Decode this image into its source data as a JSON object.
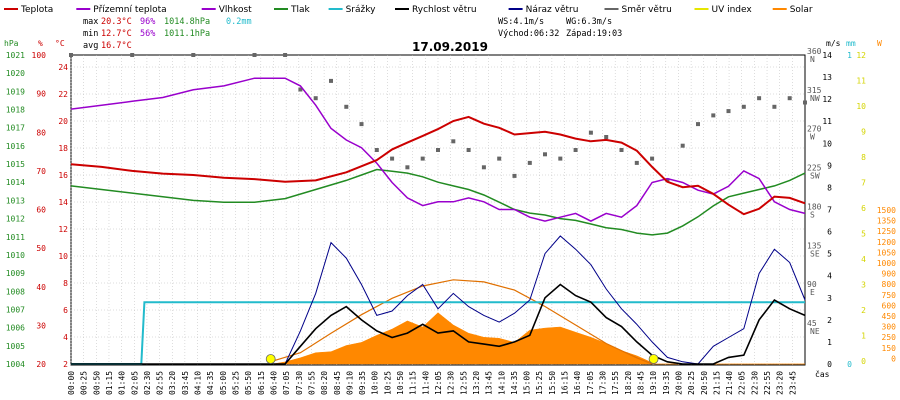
{
  "chart_data": {
    "type": "line",
    "title": "17.09.2019",
    "legend": [
      {
        "label": "Teplota",
        "color": "#cc0000"
      },
      {
        "label": "Přízemní teplota",
        "color": "#9900cc"
      },
      {
        "label": "Vlhkost",
        "color": "#9900cc"
      },
      {
        "label": "Tlak",
        "color": "#228b22"
      },
      {
        "label": "Srážky",
        "color": "#22bbcc"
      },
      {
        "label": "Rychlost větru",
        "color": "#000000"
      },
      {
        "label": "Náraz větru",
        "color": "#000088"
      },
      {
        "label": "Směr větru",
        "color": "#666666"
      },
      {
        "label": "UV index",
        "color": "#e6e600"
      },
      {
        "label": "Solar",
        "color": "#ff8800"
      }
    ],
    "stats": {
      "max_label": "max",
      "max_temp": "20.3°C",
      "max_hum": "96%",
      "max_press": "1014.8hPa",
      "rain": "0.2mm",
      "min_label": "min",
      "min_temp": "12.7°C",
      "min_hum": "56%",
      "min_press": "1011.1hPa",
      "avg_label": "avg",
      "avg_temp": "16.7°C",
      "ws": "WS:4.1m/s",
      "wg": "WG:6.3m/s",
      "sunrise": "Východ:06:32",
      "sunset": "Západ:19:03"
    },
    "left_axes": {
      "hpa_unit": "hPa",
      "hpa_ticks": [
        "1021",
        "1020",
        "1019",
        "1018",
        "1017",
        "1016",
        "1015",
        "1014",
        "1013",
        "1012",
        "1011",
        "1010",
        "1009",
        "1008",
        "1007",
        "1006",
        "1005",
        "1004"
      ],
      "pct_unit": "%",
      "pct_ticks": [
        "100",
        "90",
        "80",
        "70",
        "60",
        "50",
        "40",
        "30",
        "20"
      ],
      "c_unit": "°C",
      "c_ticks": [
        "24",
        "22",
        "20",
        "18",
        "16",
        "14",
        "12",
        "10",
        "8",
        "6",
        "4",
        "2"
      ]
    },
    "right_axes": {
      "ms_unit": "m/s",
      "ms_ticks": [
        "14",
        "13",
        "12",
        "11",
        "10",
        "9",
        "8",
        "7",
        "6",
        "5",
        "4",
        "3",
        "2",
        "1",
        "0"
      ],
      "mm_unit": "mm",
      "mm_ticks": [
        "1",
        "0"
      ],
      "w_unit": "W",
      "w_ticks": [
        "1500",
        "1350",
        "1250",
        "1200",
        "1050",
        "1000",
        "900",
        "800",
        "750",
        "600",
        "450",
        "300",
        "250",
        "150",
        "0"
      ],
      "dir_ticks": [
        {
          "deg": "360",
          "name": "N"
        },
        {
          "deg": "315",
          "name": "NW"
        },
        {
          "deg": "270",
          "name": "W"
        },
        {
          "deg": "225",
          "name": "SW"
        },
        {
          "deg": "180",
          "name": "S"
        },
        {
          "deg": "135",
          "name": "SE"
        },
        {
          "deg": "90",
          "name": "E"
        },
        {
          "deg": "45",
          "name": "NE"
        }
      ],
      "uv_ticks": [
        "12",
        "11",
        "10",
        "9",
        "8",
        "7",
        "6",
        "5",
        "4",
        "3",
        "2",
        "1",
        "0"
      ]
    },
    "x_ticks": [
      "00:00",
      "00:25",
      "00:50",
      "01:15",
      "01:40",
      "02:05",
      "02:30",
      "02:55",
      "03:20",
      "03:45",
      "04:10",
      "04:35",
      "05:00",
      "05:25",
      "05:50",
      "06:15",
      "06:40",
      "07:05",
      "07:30",
      "07:55",
      "08:20",
      "08:45",
      "09:10",
      "09:35",
      "10:00",
      "10:25",
      "10:50",
      "11:15",
      "11:40",
      "12:05",
      "12:30",
      "12:55",
      "13:20",
      "13:45",
      "14:10",
      "14:35",
      "15:00",
      "15:25",
      "15:50",
      "16:15",
      "16:40",
      "17:05",
      "17:30",
      "17:55",
      "18:20",
      "18:45",
      "19:10",
      "19:35",
      "20:00",
      "20:25",
      "20:50",
      "21:15",
      "21:40",
      "22:05",
      "22:30",
      "22:55",
      "23:20",
      "23:45"
    ],
    "x_unit": "čas",
    "x_range_hours": [
      0,
      24
    ],
    "series": [
      {
        "name": "Teplota",
        "unit": "°C",
        "color": "#cc0000",
        "x": [
          0,
          1,
          2,
          3,
          4,
          5,
          6,
          7,
          8,
          9,
          10,
          10.5,
          11,
          11.5,
          12,
          12.5,
          13,
          13.5,
          14,
          14.5,
          15,
          15.5,
          16,
          16.5,
          17,
          17.5,
          18,
          18.5,
          19,
          19.5,
          20,
          20.5,
          21,
          21.5,
          22,
          22.5,
          23,
          23.5,
          24
        ],
        "y": [
          16.8,
          16.6,
          16.3,
          16.1,
          16.0,
          15.8,
          15.7,
          15.5,
          15.6,
          16.2,
          17.1,
          17.9,
          18.4,
          18.9,
          19.4,
          20.0,
          20.3,
          19.8,
          19.5,
          19.0,
          19.1,
          19.2,
          19.0,
          18.7,
          18.5,
          18.6,
          18.4,
          17.8,
          16.6,
          15.5,
          15.1,
          15.2,
          14.6,
          13.8,
          13.1,
          13.5,
          14.4,
          14.3,
          13.9
        ]
      },
      {
        "name": "Vlhkost",
        "unit": "%",
        "color": "#9900cc",
        "x": [
          0,
          1,
          2,
          3,
          4,
          5,
          6,
          6.5,
          7,
          7.5,
          8,
          8.5,
          9,
          9.5,
          10,
          10.5,
          11,
          11.5,
          12,
          12.5,
          13,
          13.5,
          14,
          14.5,
          15,
          15.5,
          16,
          16.5,
          17,
          17.5,
          18,
          18.5,
          19,
          19.5,
          20,
          20.5,
          21,
          21.5,
          22,
          22.5,
          23,
          23.5,
          24
        ],
        "y": [
          86,
          87,
          88,
          89,
          91,
          92,
          94,
          94,
          94,
          92,
          87,
          81,
          78,
          76,
          72,
          67,
          63,
          61,
          62,
          62,
          63,
          62,
          60,
          60,
          58,
          57,
          58,
          59,
          57,
          59,
          58,
          61,
          67,
          68,
          67,
          65,
          64,
          66,
          70,
          68,
          62,
          60,
          59
        ]
      },
      {
        "name": "Tlak",
        "unit": "hPa",
        "color": "#228b22",
        "x": [
          0,
          1,
          2,
          3,
          4,
          5,
          6,
          7,
          8,
          9,
          9.5,
          10,
          10.5,
          11,
          11.5,
          12,
          12.5,
          13,
          13.5,
          14,
          14.5,
          15,
          15.5,
          16,
          16.5,
          17,
          17.5,
          18,
          18.5,
          19,
          19.5,
          20,
          20.5,
          21,
          21.5,
          22,
          22.5,
          23,
          23.5,
          24
        ],
        "y": [
          1013.8,
          1013.6,
          1013.4,
          1013.2,
          1013.0,
          1012.9,
          1012.9,
          1013.1,
          1013.6,
          1014.1,
          1014.4,
          1014.7,
          1014.6,
          1014.5,
          1014.3,
          1014.0,
          1013.8,
          1013.6,
          1013.3,
          1012.9,
          1012.5,
          1012.3,
          1012.2,
          1012.0,
          1011.9,
          1011.7,
          1011.5,
          1011.4,
          1011.2,
          1011.1,
          1011.2,
          1011.6,
          1012.1,
          1012.7,
          1013.2,
          1013.4,
          1013.6,
          1013.8,
          1014.1,
          1014.5
        ]
      },
      {
        "name": "Srážky",
        "unit": "mm",
        "color": "#22bbcc",
        "x": [
          0,
          2.3,
          2.4,
          24
        ],
        "y": [
          0,
          0,
          0.2,
          0.2
        ]
      },
      {
        "name": "Rychlost větru",
        "unit": "m/s",
        "color": "#000000",
        "x": [
          0,
          7.0,
          7.5,
          8.0,
          8.5,
          9.0,
          9.5,
          10.0,
          10.5,
          11.0,
          11.5,
          12.0,
          12.5,
          13.0,
          13.5,
          14.0,
          14.5,
          15.0,
          15.5,
          16.0,
          16.5,
          17.0,
          17.5,
          18.0,
          18.5,
          19.0,
          19.5,
          20.0,
          20.5,
          21.0,
          21.5,
          22.0,
          22.5,
          23.0,
          23.5,
          24
        ],
        "y": [
          0,
          0,
          0.8,
          1.6,
          2.2,
          2.6,
          2.0,
          1.5,
          1.2,
          1.4,
          1.8,
          1.4,
          1.5,
          1.0,
          0.9,
          0.8,
          1.0,
          1.3,
          3.0,
          3.6,
          3.1,
          2.8,
          2.1,
          1.7,
          1.0,
          0.4,
          0.1,
          0,
          0,
          0,
          0.3,
          0.4,
          2.0,
          2.9,
          2.5,
          2.2
        ]
      },
      {
        "name": "Náraz větru",
        "unit": "m/s",
        "color": "#000088",
        "x": [
          0,
          7.0,
          7.5,
          8.0,
          8.5,
          9.0,
          9.5,
          10.0,
          10.5,
          11.0,
          11.5,
          12.0,
          12.5,
          13.0,
          13.5,
          14.0,
          14.5,
          15.0,
          15.5,
          16.0,
          16.5,
          17.0,
          17.5,
          18.0,
          18.5,
          19.0,
          19.5,
          20.0,
          20.5,
          21.0,
          21.5,
          22.0,
          22.5,
          23.0,
          23.5,
          24
        ],
        "y": [
          0,
          0,
          1.5,
          3.2,
          5.5,
          4.8,
          3.6,
          2.2,
          2.4,
          3.1,
          3.6,
          2.5,
          3.2,
          2.6,
          2.2,
          1.9,
          2.3,
          2.9,
          5.0,
          5.8,
          5.2,
          4.5,
          3.4,
          2.5,
          1.8,
          1.0,
          0.3,
          0.1,
          0,
          0.8,
          1.2,
          1.6,
          4.1,
          5.2,
          4.6,
          2.9
        ]
      },
      {
        "name": "Směr větru",
        "unit": "°",
        "color": "#666666",
        "x": [
          0,
          2,
          4,
          6,
          7,
          7.5,
          8,
          8.5,
          9,
          9.5,
          10,
          10.5,
          11,
          11.5,
          12,
          12.5,
          13,
          13.5,
          14,
          14.5,
          15,
          15.5,
          16,
          16.5,
          17,
          17.5,
          18,
          18.5,
          19,
          19.5,
          20,
          20.5,
          21,
          21.5,
          22,
          22.5,
          23,
          23.5,
          24
        ],
        "y": [
          360,
          360,
          360,
          360,
          360,
          320,
          310,
          330,
          300,
          280,
          250,
          240,
          230,
          240,
          250,
          260,
          250,
          230,
          240,
          220,
          235,
          245,
          240,
          250,
          270,
          265,
          250,
          235,
          240,
          215,
          255,
          280,
          290,
          295,
          300,
          310,
          300,
          310,
          305
        ]
      },
      {
        "name": "Solar",
        "unit": "W",
        "color": "#ff8800",
        "x": [
          0,
          6.6,
          7,
          7.5,
          8,
          8.5,
          9,
          9.5,
          10,
          10.5,
          11,
          11.5,
          12,
          12.5,
          13,
          13.5,
          14,
          14.5,
          15,
          15.5,
          16,
          16.5,
          17,
          17.5,
          18,
          18.5,
          19.1,
          24
        ],
        "y": [
          0,
          0,
          20,
          60,
          110,
          120,
          180,
          210,
          280,
          340,
          420,
          360,
          500,
          380,
          300,
          260,
          250,
          210,
          330,
          350,
          360,
          310,
          260,
          200,
          130,
          80,
          0,
          0
        ]
      },
      {
        "name": "Solar (teoretický)",
        "unit": "W",
        "color": "#ff8800",
        "x": [
          6.5,
          7.5,
          8.5,
          9.5,
          10.5,
          11.5,
          12.5,
          13.5,
          14.5,
          15.5,
          16.5,
          17.5,
          18.5,
          19.0
        ],
        "y": [
          20,
          110,
          300,
          480,
          640,
          760,
          820,
          800,
          720,
          560,
          380,
          200,
          60,
          0
        ]
      },
      {
        "name": "UV index",
        "unit": "",
        "color": "#e6e600",
        "x": [
          6.5,
          19.1
        ],
        "y": [
          0,
          0
        ]
      }
    ]
  }
}
